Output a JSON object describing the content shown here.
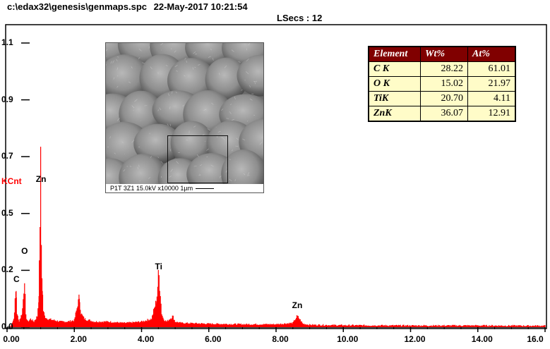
{
  "header": {
    "filepath": "c:\\edax32\\genesis\\genmaps.spc",
    "timestamp": "22-May-2017 10:21:54",
    "lsecs": "LSecs :  12"
  },
  "colors": {
    "spectrum": "#ff0000",
    "kcnt_label": "#ff0000",
    "table_header": "#800000",
    "table_cell": "#fffcc8"
  },
  "image_panel": {
    "caption": "P1T 3Z1  15.0kV  x10000   1µm"
  },
  "element_table": {
    "headers": [
      "Element",
      "Wt%",
      "At%"
    ],
    "rows": [
      {
        "element": "C K",
        "wt": "28.22",
        "at": "61.01"
      },
      {
        "element": "O K",
        "wt": "15.02",
        "at": "21.97"
      },
      {
        "element": "TiK",
        "wt": "20.70",
        "at": "4.11"
      },
      {
        "element": "ZnK",
        "wt": "36.07",
        "at": "12.91"
      }
    ]
  },
  "chart_data": {
    "type": "line",
    "ylabel": "KCnt",
    "xlim": [
      0,
      16
    ],
    "ylim": [
      0,
      1.1
    ],
    "y_ticks": [
      "0.0",
      "0.2",
      "0.5",
      "0.7",
      "0.9",
      "1.1"
    ],
    "y_tick_values": [
      0.0,
      0.22,
      0.44,
      0.66,
      0.88,
      1.1
    ],
    "x_ticks": [
      "0.00",
      "2.00",
      "4.00",
      "6.00",
      "8.00",
      "10.00",
      "12.00",
      "14.00",
      "16.0"
    ],
    "x_tick_values": [
      0,
      2,
      4,
      6,
      8,
      10,
      12,
      14,
      16
    ],
    "peak_labels": [
      {
        "text": "C",
        "x": 0.28,
        "y": 0.16
      },
      {
        "text": "O",
        "x": 0.52,
        "y": 0.27
      },
      {
        "text": "Zn",
        "x": 1.01,
        "y": 0.55
      },
      {
        "text": "Ti",
        "x": 4.51,
        "y": 0.21
      },
      {
        "text": "Zn",
        "x": 8.63,
        "y": 0.06
      }
    ],
    "series": [
      {
        "x": [
          0.1,
          0.2,
          0.27,
          0.3,
          0.35,
          0.45,
          0.52,
          0.56,
          0.62,
          0.7,
          0.8,
          0.9,
          0.95,
          1.0,
          1.02,
          1.05,
          1.08,
          1.12,
          1.2,
          1.4,
          1.6,
          1.8,
          2.0,
          2.1,
          2.15,
          2.2,
          2.3,
          2.6,
          3.0,
          3.5,
          4.0,
          4.3,
          4.45,
          4.51,
          4.56,
          4.6,
          4.65,
          4.75,
          4.93,
          5.0,
          5.2,
          6.0,
          7.0,
          8.0,
          8.5,
          8.63,
          8.7,
          8.8,
          9.0,
          10.0,
          12.0,
          14.0,
          16.0
        ],
        "y": [
          0.0,
          0.03,
          0.14,
          0.05,
          0.02,
          0.05,
          0.17,
          0.04,
          0.02,
          0.03,
          0.02,
          0.04,
          0.12,
          0.58,
          0.3,
          0.14,
          0.06,
          0.04,
          0.03,
          0.025,
          0.02,
          0.02,
          0.025,
          0.08,
          0.11,
          0.05,
          0.03,
          0.02,
          0.02,
          0.015,
          0.02,
          0.03,
          0.1,
          0.2,
          0.12,
          0.05,
          0.03,
          0.02,
          0.04,
          0.02,
          0.015,
          0.012,
          0.01,
          0.01,
          0.015,
          0.04,
          0.03,
          0.012,
          0.008,
          0.006,
          0.005,
          0.005,
          0.004
        ]
      }
    ]
  }
}
